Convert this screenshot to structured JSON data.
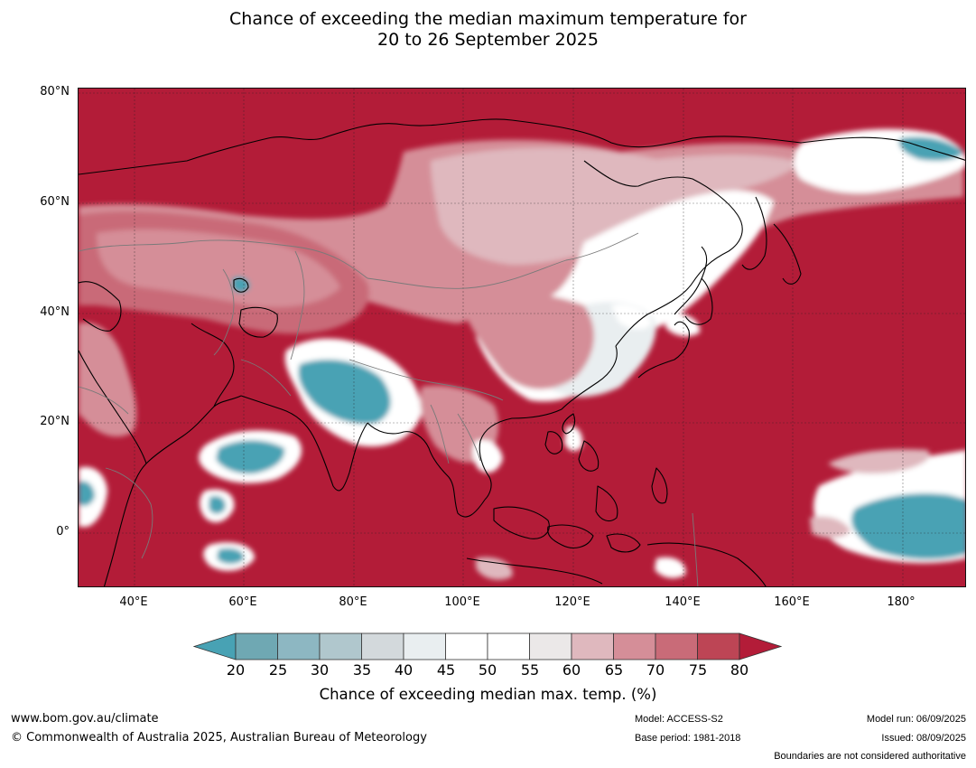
{
  "title_line1": "Chance of exceeding the median maximum temperature for",
  "title_line2": "20 to 26 September 2025",
  "lat_labels": [
    "80°N",
    "60°N",
    "40°N",
    "20°N",
    "0°"
  ],
  "lon_labels": [
    "40°E",
    "60°E",
    "80°E",
    "100°E",
    "120°E",
    "140°E",
    "160°E",
    "180°"
  ],
  "colorbar": {
    "ticks": [
      "20",
      "25",
      "30",
      "35",
      "40",
      "45",
      "50",
      "55",
      "60",
      "65",
      "70",
      "75",
      "80"
    ],
    "colors": [
      "#48a2b4",
      "#6fa8b3",
      "#8db7c2",
      "#b0c7cd",
      "#d3d9dc",
      "#e9eef0",
      "#ffffff",
      "#ffffff",
      "#ebe8e8",
      "#dfb8be",
      "#d58e98",
      "#c96b78",
      "#bd4555",
      "#b31c38"
    ],
    "label": "Chance of exceeding median max. temp. (%)"
  },
  "footer": {
    "website": "www.bom.gov.au/climate",
    "copyright": "© Commonwealth of Australia 2025, Australian Bureau of Meteorology",
    "model": "Model: ACCESS-S2",
    "base_period": "Base period: 1981-2018",
    "model_run": "Model run: 06/09/2025",
    "issued": "Issued: 08/09/2025",
    "disclaimer": "Boundaries are not considered authoritative"
  }
}
